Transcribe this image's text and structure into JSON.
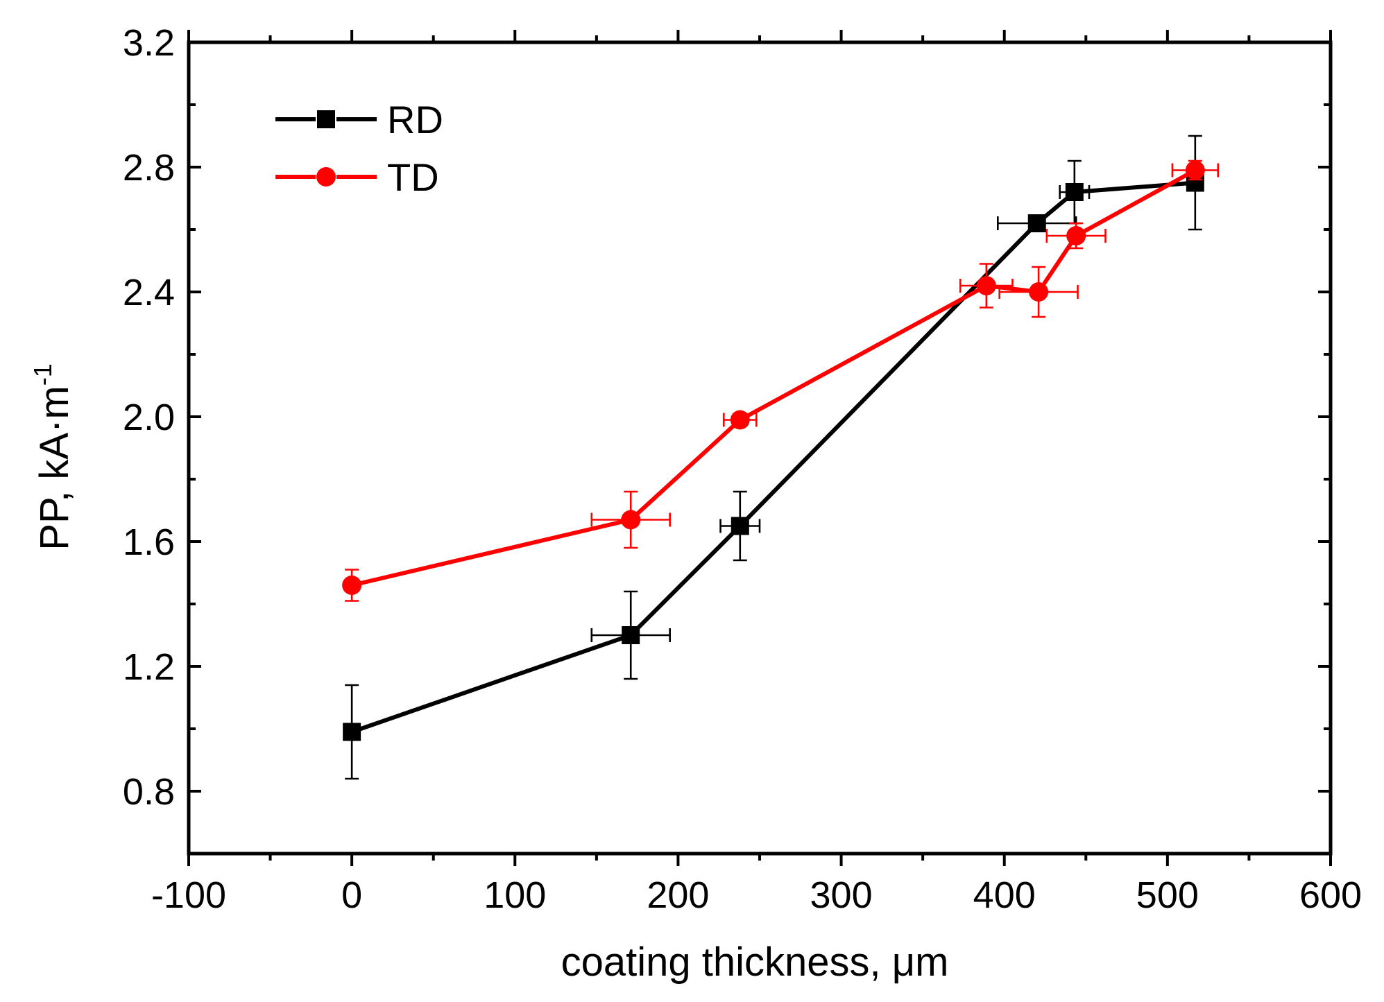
{
  "chart_data": {
    "type": "line",
    "title": "",
    "xlabel": "coating thickness, μm",
    "ylabel_main": "PP, kA·m",
    "ylabel_sup": "-1",
    "xlim": [
      -100,
      600
    ],
    "ylim": [
      0.6,
      3.2
    ],
    "x_ticks": [
      -100,
      0,
      100,
      200,
      300,
      400,
      500,
      600
    ],
    "x_tick_labels": [
      "-100",
      "0",
      "100",
      "200",
      "300",
      "400",
      "500",
      "600"
    ],
    "y_ticks": [
      0.8,
      1.2,
      1.6,
      2.0,
      2.4,
      2.8,
      3.2
    ],
    "y_tick_labels": [
      "0.8",
      "1.2",
      "1.6",
      "2.0",
      "2.4",
      "2.8",
      "3.2"
    ],
    "legend_position": "top-left",
    "series": [
      {
        "name": "RD",
        "color": "#000000",
        "marker": "square",
        "points": [
          {
            "x": 0,
            "y": 0.99,
            "yerr": 0.15,
            "xerr": 0
          },
          {
            "x": 171,
            "y": 1.3,
            "yerr": 0.14,
            "xerr": 24
          },
          {
            "x": 238,
            "y": 1.65,
            "yerr": 0.11,
            "xerr": 12
          },
          {
            "x": 420,
            "y": 2.62,
            "yerr": 0,
            "xerr": 24
          },
          {
            "x": 443,
            "y": 2.72,
            "yerr": 0.1,
            "xerr": 9
          },
          {
            "x": 517,
            "y": 2.75,
            "yerr": 0.15,
            "xerr": 0
          }
        ]
      },
      {
        "name": "TD",
        "color": "#ff0000",
        "marker": "circle",
        "points": [
          {
            "x": 0,
            "y": 1.46,
            "yerr": 0.05,
            "xerr": 0
          },
          {
            "x": 171,
            "y": 1.67,
            "yerr": 0.09,
            "xerr": 24
          },
          {
            "x": 238,
            "y": 1.99,
            "yerr": 0.02,
            "xerr": 10
          },
          {
            "x": 389,
            "y": 2.42,
            "yerr": 0.07,
            "xerr": 16
          },
          {
            "x": 421,
            "y": 2.4,
            "yerr": 0.08,
            "xerr": 24
          },
          {
            "x": 444,
            "y": 2.58,
            "yerr": 0.04,
            "xerr": 18
          },
          {
            "x": 517,
            "y": 2.79,
            "yerr": 0.03,
            "xerr": 14
          }
        ]
      }
    ]
  }
}
